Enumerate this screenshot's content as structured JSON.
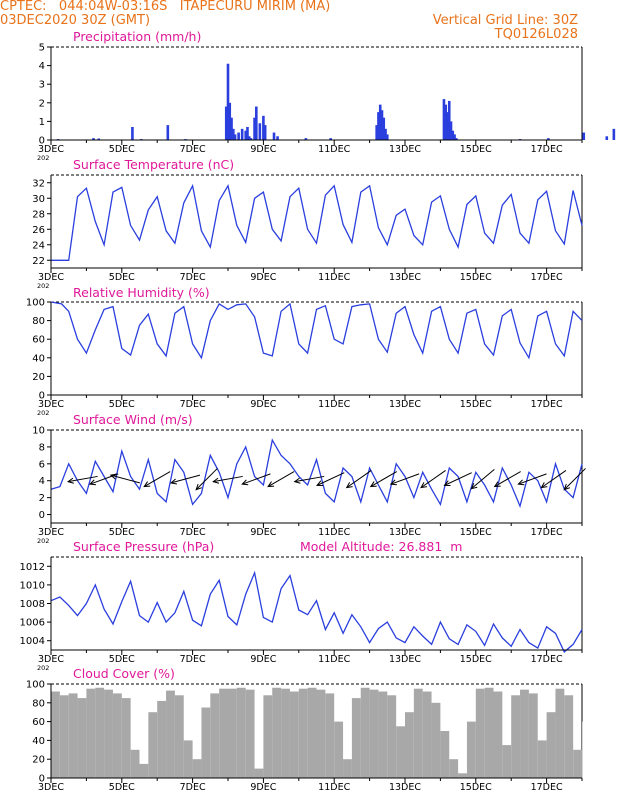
{
  "header": {
    "line1": "CPTEC:   044:04W-03:16S   ITAPECURU MIRIM (MA)",
    "line2": "03DEC2020 30Z (GMT)",
    "grid_note": "Vertical Grid Line: 30Z",
    "product_code": "TQ0126L028"
  },
  "colors": {
    "header_text": "#e8731b",
    "panel_title": "#e0189a",
    "series": "#2a3fde",
    "cloud_bar": "#a8a8a8",
    "axis": "#000000",
    "arrow": "#000000"
  },
  "x_axis": {
    "ticks": [
      "3DEC",
      "5DEC",
      "7DEC",
      "9DEC",
      "11DEC",
      "13DEC",
      "15DEC",
      "17DEC"
    ],
    "range_days": [
      0,
      15
    ],
    "sublabel": "202"
  },
  "panels": {
    "precip": {
      "title": "Precipitation (mm/h)"
    },
    "temp": {
      "title": "Surface Temperature (nC)"
    },
    "rh": {
      "title": "Relative Humidity (%)"
    },
    "wind": {
      "title": "Surface Wind (m/s)"
    },
    "pressure": {
      "title": "Surface Pressure (hPa)",
      "model_altitude": "Model Altitude: 26.881  m"
    },
    "cloud": {
      "title": "Cloud Cover (%)"
    }
  },
  "chart_data": [
    {
      "id": "precip",
      "type": "bar",
      "ylabel": "Precipitation (mm/h)",
      "ylim": [
        0,
        5
      ],
      "yticks": [
        0,
        1,
        2,
        3,
        4,
        5
      ],
      "x": [
        0.2,
        1.2,
        1.35,
        2.3,
        2.55,
        3.3,
        3.8,
        4.95,
        5.0,
        5.05,
        5.1,
        5.15,
        5.2,
        5.3,
        5.4,
        5.5,
        5.55,
        5.6,
        5.65,
        5.75,
        5.8,
        5.9,
        6.0,
        6.05,
        6.3,
        6.4,
        7.2,
        7.9,
        9.2,
        9.25,
        9.3,
        9.35,
        9.4,
        9.45,
        9.5,
        11.1,
        11.15,
        11.2,
        11.25,
        11.3,
        11.35,
        11.4,
        11.45,
        13.25,
        14.05,
        15.05,
        15.7,
        15.9
      ],
      "values": [
        0.05,
        0.1,
        0.08,
        0.7,
        0.05,
        0.8,
        0.05,
        1.8,
        4.1,
        2.0,
        1.2,
        0.6,
        0.3,
        0.4,
        0.6,
        0.5,
        0.7,
        0.2,
        0.1,
        1.2,
        1.8,
        0.9,
        1.3,
        0.8,
        0.4,
        0.2,
        0.1,
        0.1,
        0.8,
        1.5,
        1.9,
        1.6,
        1.2,
        0.6,
        0.3,
        2.2,
        1.9,
        1.5,
        2.1,
        1.0,
        0.5,
        0.3,
        0.1,
        0.05,
        0.1,
        0.4,
        0.2,
        0.6
      ]
    },
    {
      "id": "temp",
      "type": "line",
      "ylabel": "Surface Temperature (nC)",
      "ylim": [
        21,
        33
      ],
      "yticks": [
        22,
        24,
        26,
        28,
        30,
        32
      ],
      "x": [
        0.0,
        0.5,
        0.75,
        1.0,
        1.25,
        1.5,
        1.75,
        2.0,
        2.25,
        2.5,
        2.75,
        3.0,
        3.25,
        3.5,
        3.75,
        4.0,
        4.25,
        4.5,
        4.75,
        5.0,
        5.25,
        5.5,
        5.75,
        6.0,
        6.25,
        6.5,
        6.75,
        7.0,
        7.25,
        7.5,
        7.75,
        8.0,
        8.25,
        8.5,
        8.75,
        9.0,
        9.25,
        9.5,
        9.75,
        10.0,
        10.25,
        10.5,
        10.75,
        11.0,
        11.25,
        11.5,
        11.75,
        12.0,
        12.25,
        12.5,
        12.75,
        13.0,
        13.25,
        13.5,
        13.75,
        14.0,
        14.25,
        14.5,
        14.75,
        15.0
      ],
      "values": [
        22.0,
        22.0,
        30.2,
        31.3,
        27.0,
        24.0,
        30.8,
        31.4,
        26.5,
        24.6,
        28.5,
        30.2,
        25.8,
        24.2,
        29.4,
        31.6,
        25.8,
        23.7,
        29.7,
        31.6,
        26.5,
        24.3,
        30.0,
        30.8,
        26.0,
        24.5,
        30.2,
        31.3,
        26.0,
        24.2,
        30.4,
        31.6,
        26.6,
        24.3,
        30.8,
        31.6,
        26.2,
        24.0,
        27.8,
        28.6,
        25.2,
        24.0,
        29.5,
        30.3,
        26.0,
        23.7,
        29.2,
        30.3,
        25.5,
        24.2,
        29.1,
        30.5,
        25.5,
        24.2,
        29.8,
        30.9,
        25.8,
        24.1,
        31.0,
        26.5
      ]
    },
    {
      "id": "rh",
      "type": "line",
      "ylabel": "Relative Humidity (%)",
      "ylim": [
        0,
        100
      ],
      "yticks": [
        0,
        20,
        40,
        60,
        80,
        100
      ],
      "x": [
        0.0,
        0.3,
        0.5,
        0.75,
        1.0,
        1.25,
        1.5,
        1.75,
        2.0,
        2.25,
        2.5,
        2.75,
        3.0,
        3.25,
        3.5,
        3.75,
        4.0,
        4.25,
        4.5,
        4.75,
        5.0,
        5.25,
        5.5,
        5.75,
        6.0,
        6.25,
        6.5,
        6.75,
        7.0,
        7.25,
        7.5,
        7.75,
        8.0,
        8.25,
        8.5,
        8.75,
        9.0,
        9.25,
        9.5,
        9.75,
        10.0,
        10.25,
        10.5,
        10.75,
        11.0,
        11.25,
        11.5,
        11.75,
        12.0,
        12.25,
        12.5,
        12.75,
        13.0,
        13.25,
        13.5,
        13.75,
        14.0,
        14.25,
        14.5,
        14.75,
        15.0
      ],
      "values": [
        100,
        98,
        90,
        60,
        45,
        70,
        92,
        95,
        50,
        43,
        75,
        87,
        55,
        42,
        88,
        95,
        55,
        40,
        80,
        98,
        92,
        97,
        98,
        84,
        45,
        42,
        90,
        98,
        55,
        45,
        92,
        96,
        60,
        55,
        95,
        97,
        98,
        60,
        46,
        88,
        95,
        65,
        45,
        90,
        95,
        60,
        45,
        88,
        92,
        55,
        43,
        85,
        92,
        56,
        40,
        85,
        90,
        55,
        42,
        90,
        80
      ]
    },
    {
      "id": "wind_speed",
      "type": "line",
      "ylabel": "Surface Wind (m/s)",
      "ylim": [
        -1,
        10
      ],
      "yticks": [
        0,
        2,
        4,
        6,
        8,
        10
      ],
      "x": [
        0.0,
        0.25,
        0.5,
        0.75,
        1.0,
        1.25,
        1.5,
        1.75,
        2.0,
        2.25,
        2.5,
        2.75,
        3.0,
        3.25,
        3.5,
        3.75,
        4.0,
        4.25,
        4.5,
        4.75,
        5.0,
        5.25,
        5.5,
        5.75,
        6.0,
        6.25,
        6.5,
        6.75,
        7.0,
        7.25,
        7.5,
        7.75,
        8.0,
        8.25,
        8.5,
        8.75,
        9.0,
        9.25,
        9.5,
        9.75,
        10.0,
        10.25,
        10.5,
        10.75,
        11.0,
        11.25,
        11.5,
        11.75,
        12.0,
        12.25,
        12.5,
        12.75,
        13.0,
        13.25,
        13.5,
        13.75,
        14.0,
        14.25,
        14.5,
        14.75,
        15.0
      ],
      "values": [
        3.0,
        3.3,
        6.0,
        4.0,
        2.5,
        6.3,
        4.5,
        2.7,
        7.5,
        4.5,
        3.0,
        6.5,
        2.5,
        1.5,
        6.5,
        5.0,
        1.2,
        2.5,
        7.0,
        5.0,
        2.0,
        6.0,
        8.0,
        4.5,
        3.5,
        8.8,
        7.0,
        6.0,
        4.5,
        3.5,
        6.5,
        2.5,
        1.5,
        5.5,
        4.5,
        1.5,
        5.5,
        3.5,
        1.5,
        6.0,
        4.5,
        2.0,
        5.0,
        3.0,
        1.2,
        5.5,
        4.5,
        1.5,
        5.0,
        3.5,
        1.5,
        5.5,
        3.5,
        1.0,
        5.0,
        4.0,
        1.5,
        6.0,
        3.0,
        2.0,
        6.0
      ],
      "arrows_x": [
        0.9,
        1.5,
        2.1,
        3.0,
        3.8,
        4.4,
        5.0,
        5.8,
        6.5,
        7.3,
        7.9,
        8.7,
        9.4,
        10.0,
        10.8,
        11.5,
        12.2,
        12.9,
        13.6,
        14.2,
        14.8
      ],
      "arrows_dir_deg": [
        190,
        200,
        165,
        210,
        195,
        225,
        190,
        200,
        210,
        190,
        205,
        215,
        210,
        200,
        215,
        205,
        220,
        210,
        200,
        215,
        225
      ]
    },
    {
      "id": "pressure",
      "type": "line",
      "ylabel": "Surface Pressure (hPa)",
      "ylim": [
        1003,
        1013
      ],
      "yticks": [
        1004,
        1006,
        1008,
        1010,
        1012
      ],
      "x": [
        0.0,
        0.25,
        0.5,
        0.75,
        1.0,
        1.25,
        1.5,
        1.75,
        2.0,
        2.25,
        2.5,
        2.75,
        3.0,
        3.25,
        3.5,
        3.75,
        4.0,
        4.25,
        4.5,
        4.75,
        5.0,
        5.25,
        5.5,
        5.75,
        6.0,
        6.25,
        6.5,
        6.75,
        7.0,
        7.25,
        7.5,
        7.75,
        8.0,
        8.25,
        8.5,
        8.75,
        9.0,
        9.25,
        9.5,
        9.75,
        10.0,
        10.25,
        10.5,
        10.75,
        11.0,
        11.25,
        11.5,
        11.75,
        12.0,
        12.25,
        12.5,
        12.75,
        13.0,
        13.25,
        13.5,
        13.75,
        14.0,
        14.25,
        14.5,
        14.75,
        15.0
      ],
      "values": [
        1008.3,
        1008.7,
        1007.8,
        1006.7,
        1008.0,
        1010.0,
        1007.4,
        1005.8,
        1008.2,
        1010.4,
        1006.7,
        1006.0,
        1008.1,
        1006.0,
        1007.0,
        1009.3,
        1006.2,
        1005.6,
        1009.0,
        1010.5,
        1006.6,
        1005.7,
        1009.0,
        1011.3,
        1006.5,
        1006.0,
        1009.6,
        1011.0,
        1007.3,
        1006.8,
        1008.3,
        1005.2,
        1007.0,
        1004.8,
        1006.8,
        1005.5,
        1003.8,
        1005.3,
        1006.0,
        1004.3,
        1003.8,
        1005.5,
        1004.5,
        1003.6,
        1006.0,
        1004.2,
        1003.6,
        1005.7,
        1005.0,
        1003.5,
        1005.8,
        1004.3,
        1003.4,
        1005.2,
        1003.8,
        1003.2,
        1005.5,
        1004.8,
        1002.8,
        1003.6,
        1005.2
      ]
    },
    {
      "id": "cloud",
      "type": "area",
      "ylabel": "Cloud Cover (%)",
      "ylim": [
        0,
        100
      ],
      "yticks": [
        0,
        20,
        40,
        60,
        80,
        100
      ],
      "x": [
        0.0,
        0.25,
        0.5,
        0.75,
        1.0,
        1.25,
        1.5,
        1.75,
        2.0,
        2.25,
        2.5,
        2.75,
        3.0,
        3.25,
        3.5,
        3.75,
        4.0,
        4.25,
        4.5,
        4.75,
        5.0,
        5.25,
        5.5,
        5.75,
        6.0,
        6.25,
        6.5,
        6.75,
        7.0,
        7.25,
        7.5,
        7.75,
        8.0,
        8.25,
        8.5,
        8.75,
        9.0,
        9.25,
        9.5,
        9.75,
        10.0,
        10.25,
        10.5,
        10.75,
        11.0,
        11.25,
        11.5,
        11.75,
        12.0,
        12.25,
        12.5,
        12.75,
        13.0,
        13.25,
        13.5,
        13.75,
        14.0,
        14.25,
        14.5,
        14.75,
        15.0
      ],
      "values": [
        92,
        88,
        90,
        85,
        95,
        96,
        94,
        90,
        85,
        30,
        15,
        70,
        82,
        93,
        88,
        40,
        20,
        75,
        90,
        95,
        95,
        96,
        94,
        10,
        88,
        96,
        95,
        92,
        95,
        96,
        94,
        90,
        60,
        20,
        85,
        96,
        94,
        92,
        88,
        55,
        70,
        95,
        92,
        80,
        50,
        20,
        5,
        60,
        95,
        96,
        92,
        35,
        88,
        94,
        90,
        40,
        70,
        95,
        88,
        30,
        60
      ]
    }
  ]
}
